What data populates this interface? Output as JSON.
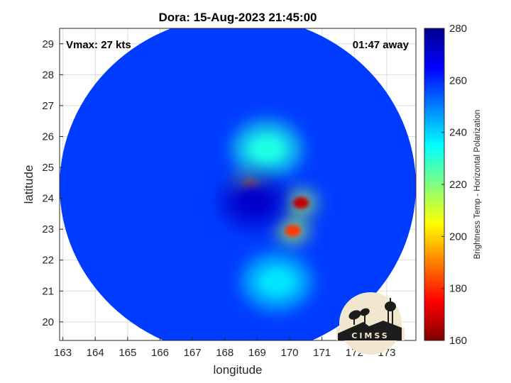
{
  "chart_data": {
    "type": "heatmap",
    "title": "Dora: 15-Aug-2023 21:45:00",
    "annotations": {
      "vmax": "Vmax: 27 kts",
      "time_away": "01:47 away"
    },
    "xlabel": "longitude",
    "ylabel": "latitude",
    "xlim": [
      162.9,
      173.9
    ],
    "ylim": [
      19.4,
      29.5
    ],
    "xticks": [
      "163",
      "164",
      "165",
      "166",
      "167",
      "168",
      "169",
      "170",
      "171",
      "172",
      "173"
    ],
    "yticks": [
      "20",
      "21",
      "22",
      "23",
      "24",
      "25",
      "26",
      "27",
      "28",
      "29"
    ],
    "grid": true,
    "colorbar": {
      "label": "Brightness Temp - Horizontal Polarization",
      "range": [
        160,
        280
      ],
      "ticks": [
        "160",
        "180",
        "200",
        "220",
        "240",
        "260",
        "280"
      ],
      "colormap": "jet"
    },
    "swath": {
      "center": [
        168.4,
        24.4
      ],
      "radius_deg": 5.5
    },
    "background_value": 258,
    "features": [
      {
        "name": "cold core",
        "lon": 170.35,
        "lat": 23.85,
        "value": 168
      },
      {
        "name": "cold band",
        "lon": 170.1,
        "lat": 22.95,
        "value": 182
      },
      {
        "name": "convection spot",
        "lon": 168.8,
        "lat": 24.45,
        "value": 195
      },
      {
        "name": "rainband south",
        "lon": 169.6,
        "lat": 21.3,
        "value": 238
      },
      {
        "name": "rainband north",
        "lon": 169.3,
        "lat": 25.6,
        "value": 232
      },
      {
        "name": "warm eye region",
        "lon": 168.9,
        "lat": 23.9,
        "value": 272
      }
    ]
  },
  "logo": {
    "name": "CIMSS",
    "text": "CIMSS"
  },
  "colors": {
    "background_swath": "#2349e0",
    "axes": "#262626",
    "grid": "#dcdcdc",
    "logo_bg": "#f1e7cf",
    "logo_dark": "#1c1c1c"
  }
}
